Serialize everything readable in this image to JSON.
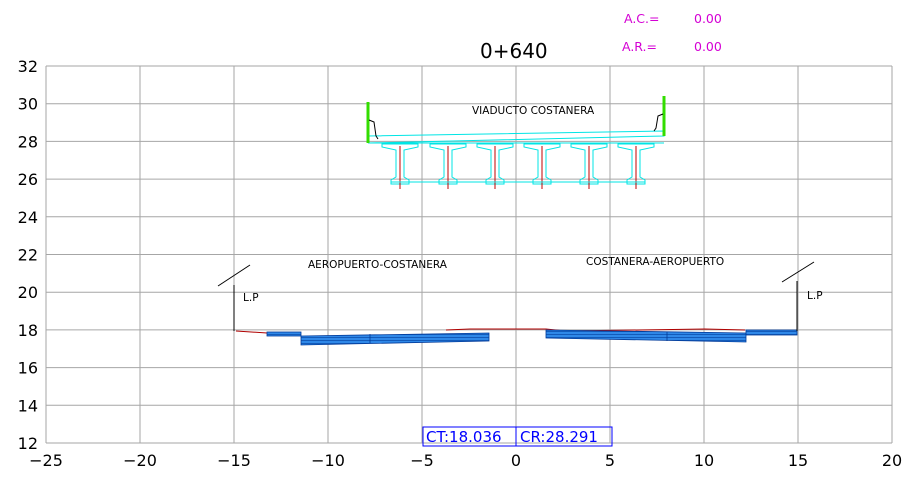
{
  "header": {
    "ac_label": "A.C.=",
    "ac_value": "0.00",
    "ar_label": "A.R.=",
    "ar_value": "0.00",
    "station": "0+640"
  },
  "labels": {
    "viaduct": "VIADUCTO  COSTANERA",
    "left_lane": "AEROPUERTO-COSTANERA",
    "right_lane": "COSTANERA-AEROPUERTO",
    "lp_left": "L.P",
    "lp_right": "L.P"
  },
  "footer": {
    "ct": "CT:18.036",
    "cr": "CR:28.291"
  },
  "colors": {
    "annotation": "#d400d4",
    "deck_outline": "#00e5e5",
    "pavement": "#1e78d8",
    "barrier": "#33dd00",
    "ground_line": "#b00000",
    "ctcr_text": "#0000ff"
  },
  "axes": {
    "x": {
      "min": -25,
      "max": 20,
      "ticks": [
        -25,
        -20,
        -15,
        -10,
        -5,
        0,
        5,
        10,
        15,
        20
      ],
      "tick_labels": [
        "−25",
        "−20",
        "−15",
        "−10",
        "−5",
        "0",
        "5",
        "10",
        "15",
        "20"
      ]
    },
    "y": {
      "min": 12,
      "max": 32,
      "ticks": [
        12,
        14,
        16,
        18,
        20,
        22,
        24,
        26,
        28,
        30,
        32
      ],
      "tick_labels": [
        "12",
        "14",
        "16",
        "18",
        "20",
        "22",
        "24",
        "26",
        "28",
        "30",
        "32"
      ]
    },
    "grid": true
  }
}
